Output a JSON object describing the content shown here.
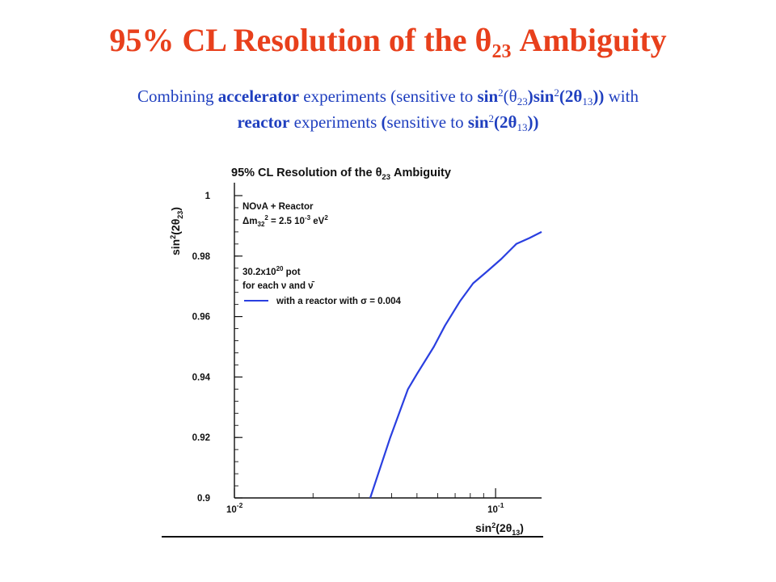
{
  "slide": {
    "title_main": "95% CL Resolution of the θ",
    "title_sub": "23",
    "title_tail": " Ambiguity",
    "subtitle_line1": {
      "t1": "Combining ",
      "t2": "accelerator",
      "t3": " experiments (sensitive to ",
      "t4": "sin",
      "t5": "2",
      "t6": "(θ",
      "t7": "23",
      "t8": ")sin",
      "t9": "2",
      "t10": "(2θ",
      "t11": "13",
      "t12": "))",
      "t13": " with"
    },
    "subtitle_line2": {
      "t1": "reactor",
      "t2": "  experiments ",
      "t3": "(",
      "t4": "sensitive to ",
      "t5": "sin",
      "t6": "2",
      "t7": "(2θ",
      "t8": "13",
      "t9": "))"
    }
  },
  "chart_data": {
    "type": "line",
    "title_main": "95% CL Resolution of the θ",
    "title_sub": "23",
    "title_tail": " Ambiguity",
    "xlabel_main": "sin",
    "xlabel_sup": "2",
    "xlabel_tail": "(2θ",
    "xlabel_sub": "13",
    "xlabel_close": ")",
    "ylabel_main": "sin",
    "ylabel_sup": "2",
    "ylabel_tail": "(2θ",
    "ylabel_sub": "23",
    "ylabel_close": ")",
    "x_scale": "log",
    "xlim": [
      0.01,
      0.15
    ],
    "ylim": [
      0.9,
      1.0
    ],
    "x_ticks": [
      {
        "value": 0.01,
        "base": "10",
        "exp": "-2"
      },
      {
        "value": 0.1,
        "base": "10",
        "exp": "-1"
      }
    ],
    "y_ticks": [
      {
        "value": 0.9,
        "label": "0.9"
      },
      {
        "value": 0.92,
        "label": "0.92"
      },
      {
        "value": 0.94,
        "label": "0.94"
      },
      {
        "value": 0.96,
        "label": "0.96"
      },
      {
        "value": 0.98,
        "label": "0.98"
      },
      {
        "value": 1.0,
        "label": "1"
      }
    ],
    "grid": false,
    "legend_placement": "top-left",
    "annotations": {
      "line1": "NOνA + Reactor",
      "line2_a": "Δm",
      "line2_sub": "32",
      "line2_sup": "2",
      "line2_b": " = 2.5 10",
      "line2_sup2": "-3",
      "line2_c": " eV",
      "line2_sup3": "2",
      "line3_a": "30.2x10",
      "line3_sup": "20",
      "line3_b": " pot",
      "line4": "for each ν and ν̄"
    },
    "series": [
      {
        "name": "with a reactor with σ = 0.004",
        "color": "#2a3fe0",
        "x": [
          0.0331,
          0.0395,
          0.0462,
          0.05,
          0.058,
          0.064,
          0.073,
          0.082,
          0.093,
          0.105,
          0.12,
          0.135,
          0.15
        ],
        "y": [
          0.9,
          0.92,
          0.936,
          0.941,
          0.95,
          0.957,
          0.965,
          0.971,
          0.975,
          0.979,
          0.984,
          0.986,
          0.988
        ]
      }
    ]
  }
}
